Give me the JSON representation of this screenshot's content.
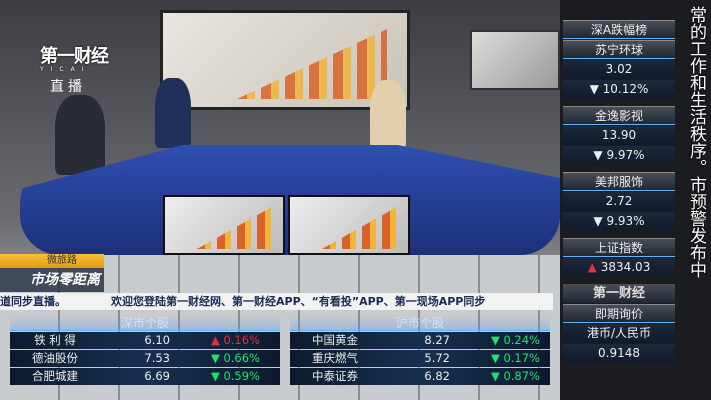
{
  "overlay": {
    "logo": "第一财经",
    "logo_sub": "YICAI",
    "live": "直播",
    "vertical_caption": "常的工作和生活秩序。市预警发布中"
  },
  "program": {
    "tag": "微旅路",
    "name": "市场零距离"
  },
  "ticker": {
    "segments": [
      "道同步直播。",
      "欢迎您登陆第一财经网、第一财经APP、“有看投”APP、第一现场APP同步"
    ]
  },
  "sz_table": {
    "title": "深市个股",
    "rows": [
      {
        "name": "铁 利 得",
        "price": "6.10",
        "change": "0.16%",
        "dir": "up"
      },
      {
        "name": "德油股份",
        "price": "7.53",
        "change": "0.66%",
        "dir": "down"
      },
      {
        "name": "合肥城建",
        "price": "6.69",
        "change": "0.59%",
        "dir": "down"
      }
    ]
  },
  "sh_table": {
    "title": "沪市个股",
    "rows": [
      {
        "name": "中国黄金",
        "price": "8.27",
        "change": "0.24%",
        "dir": "down"
      },
      {
        "name": "重庆燃气",
        "price": "5.72",
        "change": "0.17%",
        "dir": "down"
      },
      {
        "name": "中泰证券",
        "price": "6.82",
        "change": "0.87%",
        "dir": "down"
      }
    ]
  },
  "sidebar": {
    "title": "深A跌幅榜",
    "stocks": [
      {
        "name": "苏宁环球",
        "price": "3.02",
        "change": "10.12%"
      },
      {
        "name": "金逸影视",
        "price": "13.90",
        "change": "9.97%"
      },
      {
        "name": "美邦服饰",
        "price": "2.72",
        "change": "9.93%"
      }
    ],
    "index": {
      "name": "上证指数",
      "value": "3834.03",
      "dir": "up"
    },
    "logo": "第一财经",
    "fx_title": "即期询价",
    "fx_pair": "港币/人民币",
    "fx_value": "0.9148"
  },
  "colors": {
    "up": "#e3303a",
    "down": "#1fe36a",
    "ticker_bg": "#f2f2f2"
  },
  "icons": {
    "up": "triangle-up-icon",
    "down": "triangle-down-icon"
  }
}
